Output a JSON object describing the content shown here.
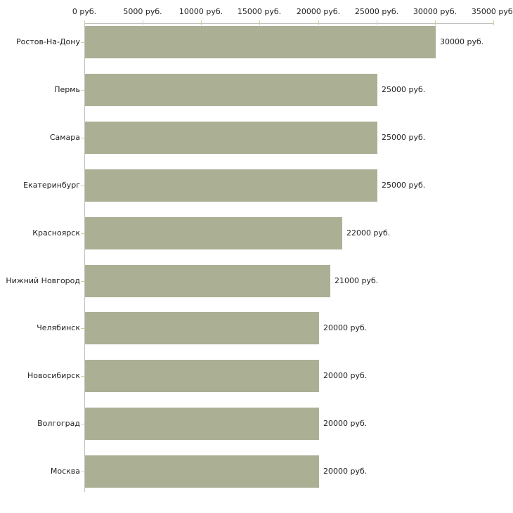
{
  "chart_data": {
    "type": "bar",
    "orientation": "horizontal",
    "title": "",
    "xlabel": "",
    "ylabel": "",
    "grid": false,
    "legend": null,
    "categories": [
      "Ростов-На-Дону",
      "Пермь",
      "Самара",
      "Екатеринбург",
      "Красноярск",
      "Нижний Новгород",
      "Челябинск",
      "Новосибирск",
      "Волгоград",
      "Москва"
    ],
    "values": [
      30000,
      25000,
      25000,
      25000,
      22000,
      21000,
      20000,
      20000,
      20000,
      20000
    ],
    "value_labels": [
      "30000 руб.",
      "25000 руб.",
      "25000 руб.",
      "25000 руб.",
      "22000 руб.",
      "21000 руб.",
      "20000 руб.",
      "20000 руб.",
      "20000 руб.",
      "20000 руб."
    ],
    "x_ticks": [
      0,
      5000,
      10000,
      15000,
      20000,
      25000,
      30000,
      35000
    ],
    "x_tick_labels": [
      "0 руб.",
      "5000 руб.",
      "10000 руб.",
      "15000 руб.",
      "20000 руб.",
      "25000 руб.",
      "30000 руб.",
      "35000 руб."
    ],
    "xlim": [
      0,
      35000
    ],
    "colors": {
      "bar": "#abb095",
      "axis_line": "#c0c0c0",
      "tick": "#cbd0a2",
      "text": "#222222",
      "background": "#ffffff"
    }
  }
}
